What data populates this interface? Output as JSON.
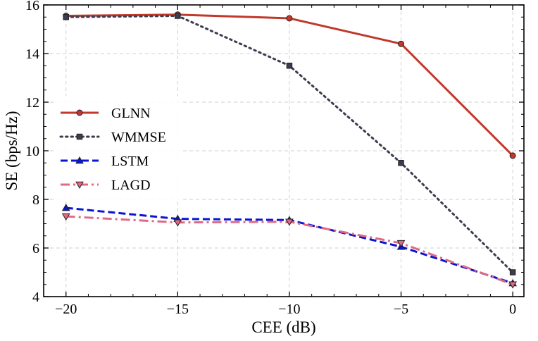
{
  "chart_data": {
    "type": "line",
    "title": "",
    "xlabel": "CEE (dB)",
    "ylabel": "SE (bps/Hz)",
    "x": [
      -20,
      -15,
      -10,
      -5,
      0
    ],
    "x_tick_labels": [
      "−20",
      "−15",
      "−10",
      "−5",
      "0"
    ],
    "xlim": [
      -21,
      0.5
    ],
    "ylim": [
      4,
      16
    ],
    "y_ticks": [
      4,
      6,
      8,
      10,
      12,
      14,
      16
    ],
    "y_tick_labels": [
      "4",
      "6",
      "8",
      "10",
      "12",
      "14",
      "16"
    ],
    "grid": true,
    "legend_position": "center-left",
    "series": [
      {
        "name": "GLNN",
        "values": [
          15.55,
          15.6,
          15.45,
          14.4,
          9.8
        ],
        "color": "#c0392b",
        "marker": "circle",
        "line_style": "solid"
      },
      {
        "name": "WMMSE",
        "values": [
          15.5,
          15.55,
          13.5,
          9.5,
          5.0
        ],
        "color": "#3c3c50",
        "marker": "square",
        "line_style": "dotted"
      },
      {
        "name": "LSTM",
        "values": [
          7.65,
          7.2,
          7.15,
          6.05,
          4.55
        ],
        "color": "#0a14d2",
        "marker": "triangle-up",
        "line_style": "dashed"
      },
      {
        "name": "LAGD",
        "values": [
          7.3,
          7.05,
          7.08,
          6.2,
          4.5
        ],
        "color": "#e06a86",
        "marker": "triangle-down",
        "line_style": "dashdot"
      }
    ]
  }
}
